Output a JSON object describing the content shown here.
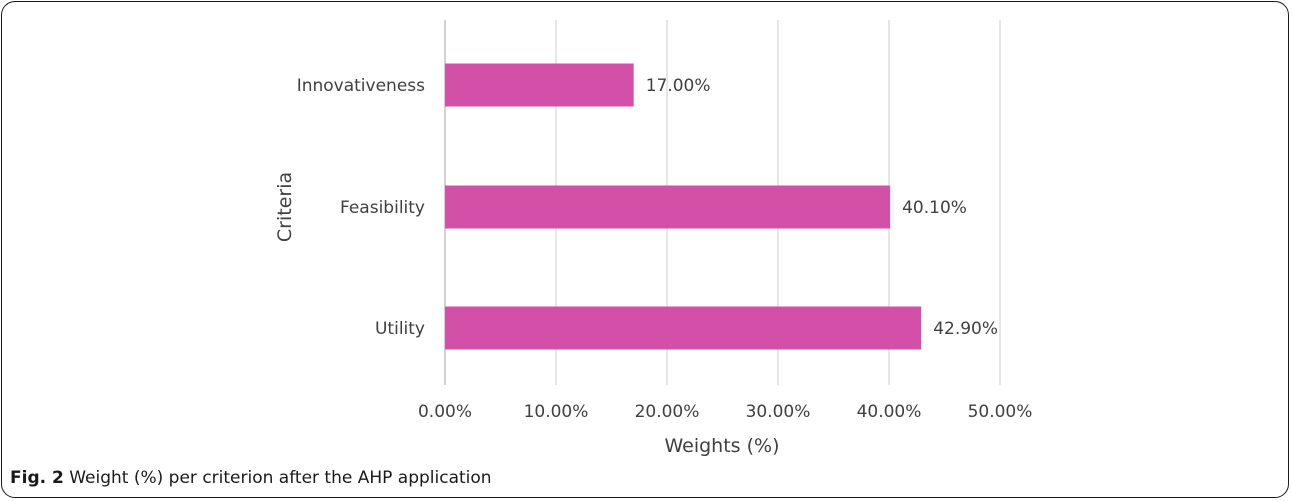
{
  "chart_data": {
    "type": "bar",
    "orientation": "horizontal",
    "categories": [
      "Innovativeness",
      "Feasibility",
      "Utility"
    ],
    "series": [
      {
        "values": [
          17.0,
          40.1,
          42.9
        ]
      }
    ],
    "data_labels": [
      "17.00%",
      "40.10%",
      "42.90%"
    ],
    "xlabel": "Weights (%)",
    "ylabel": "Criteria",
    "xlim": [
      0,
      50
    ],
    "x_ticks": [
      0,
      10,
      20,
      30,
      40,
      50
    ],
    "x_tick_labels": [
      "0.00%",
      "10.00%",
      "20.00%",
      "30.00%",
      "40.00%",
      "50.00%"
    ],
    "grid": true,
    "colors": {
      "bar": "#d350a8",
      "grid": "#d9d9d9",
      "text": "#404040"
    }
  },
  "caption": {
    "label": "Fig. 2",
    "text": " Weight (%) per criterion after the AHP application"
  }
}
